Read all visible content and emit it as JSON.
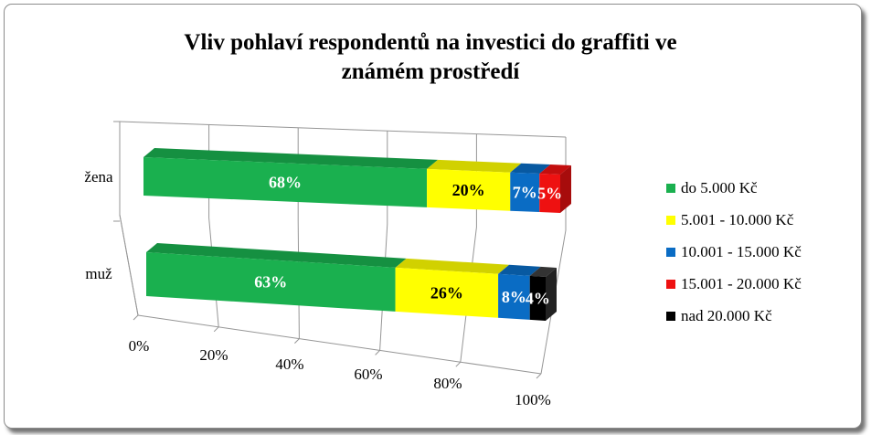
{
  "chart_data": {
    "type": "bar",
    "orientation": "horizontal",
    "stacked": "percent",
    "three_d": true,
    "title": "Vliv pohlaví respondentů na investici do graffiti ve známém prostředí",
    "title_lines": [
      "Vliv pohlaví respondentů na investici do graffiti ve",
      "známém prostředí"
    ],
    "categories": [
      "žena",
      "muž"
    ],
    "xlim": [
      0,
      100
    ],
    "x_ticks": [
      "0%",
      "20%",
      "40%",
      "60%",
      "80%",
      "100%"
    ],
    "grid": true,
    "legend_position": "right",
    "series": [
      {
        "name": "do 5.000 Kč",
        "color": "#1ab04f",
        "values": [
          68,
          63
        ],
        "labels": [
          "68%",
          "63%"
        ]
      },
      {
        "name": "5.001 - 10.000 Kč",
        "color": "#ffff00",
        "values": [
          20,
          26
        ],
        "labels": [
          "20%",
          "26%"
        ]
      },
      {
        "name": "10.001 - 15.000 Kč",
        "color": "#0a6cc4",
        "values": [
          7,
          8
        ],
        "labels": [
          "7%",
          "8%"
        ]
      },
      {
        "name": "15.001 - 20.000 Kč",
        "color": "#ee1111",
        "values": [
          5,
          0
        ],
        "labels": [
          "5%",
          ""
        ]
      },
      {
        "name": "nad 20.000 Kč",
        "color": "#000000",
        "values": [
          0,
          4
        ],
        "labels": [
          "",
          "4%"
        ]
      }
    ]
  }
}
